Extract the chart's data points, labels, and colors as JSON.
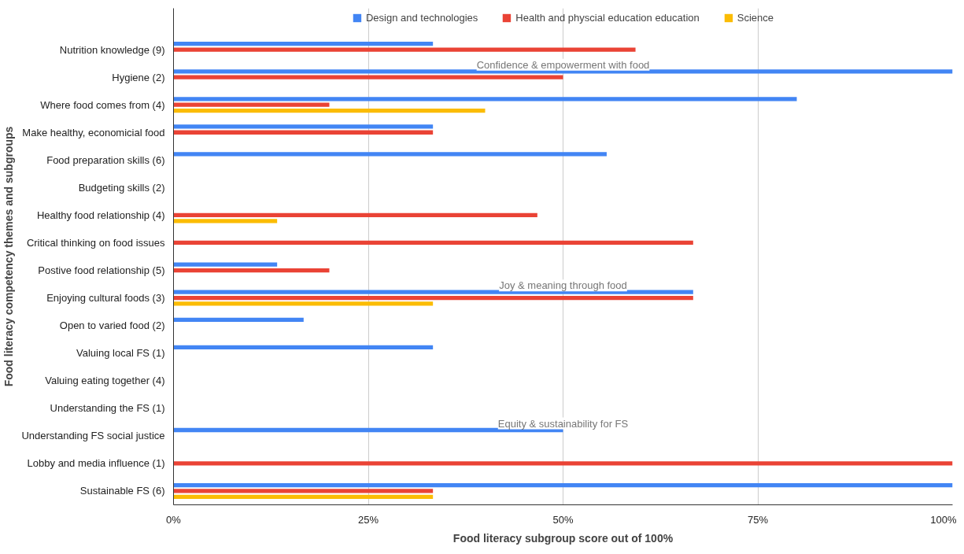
{
  "chart_data": {
    "type": "bar",
    "orientation": "horizontal",
    "xlabel": "Food literacy subgroup score out of 100%",
    "ylabel": "Food literacy competency themes and subgroups",
    "categories": [
      "Nutrition knowledge (9)",
      "Hygiene (2)",
      "Where food comes from (4)",
      "Make healthy, economicial food",
      "Food preparation skills (6)",
      "Budgeting skills (2)",
      "Healthy food relationship (4)",
      "Critical thinking on food issues",
      "Postive food relationship (5)",
      "Enjoying cultural foods (3)",
      "Open to varied food (2)",
      "Valuing local FS (1)",
      "Valuing eating together (4)",
      "Understanding the FS (1)",
      "Understanding FS social justice",
      "Lobby and media influence (1)",
      "Sustainable FS (6)"
    ],
    "series": [
      {
        "name": "Design and technologies",
        "color": "#4285f4",
        "values": [
          33.3,
          100,
          80,
          33.3,
          55.6,
          null,
          null,
          null,
          13.3,
          66.7,
          16.7,
          33.3,
          null,
          null,
          50,
          null,
          100
        ]
      },
      {
        "name": "Health and physcial education education",
        "color": "#ea4335",
        "values": [
          59.3,
          50,
          20,
          33.3,
          null,
          null,
          46.7,
          66.7,
          20,
          66.7,
          null,
          null,
          null,
          null,
          null,
          100,
          33.3
        ]
      },
      {
        "name": "Science",
        "color": "#fbbc04",
        "values": [
          null,
          null,
          40,
          null,
          null,
          null,
          13.3,
          null,
          null,
          33.3,
          null,
          null,
          null,
          null,
          null,
          null,
          33.3
        ]
      }
    ],
    "xlim": [
      0,
      100
    ],
    "xticks": [
      {
        "value": 0,
        "label": "0%"
      },
      {
        "value": 25,
        "label": "25%"
      },
      {
        "value": 50,
        "label": "50%"
      },
      {
        "value": 75,
        "label": "75%"
      },
      {
        "value": 100,
        "label": "100%"
      }
    ],
    "grid": "x",
    "legend": "top",
    "annotations": [
      {
        "text": "Confidence & empowerment with food",
        "y": "Hygiene (2)"
      },
      {
        "text": "Joy & meaning through food",
        "y": "Enjoying cultural foods (3)"
      },
      {
        "text": "Equity & sustainability for FS",
        "y": "Understanding FS social justice"
      }
    ]
  }
}
